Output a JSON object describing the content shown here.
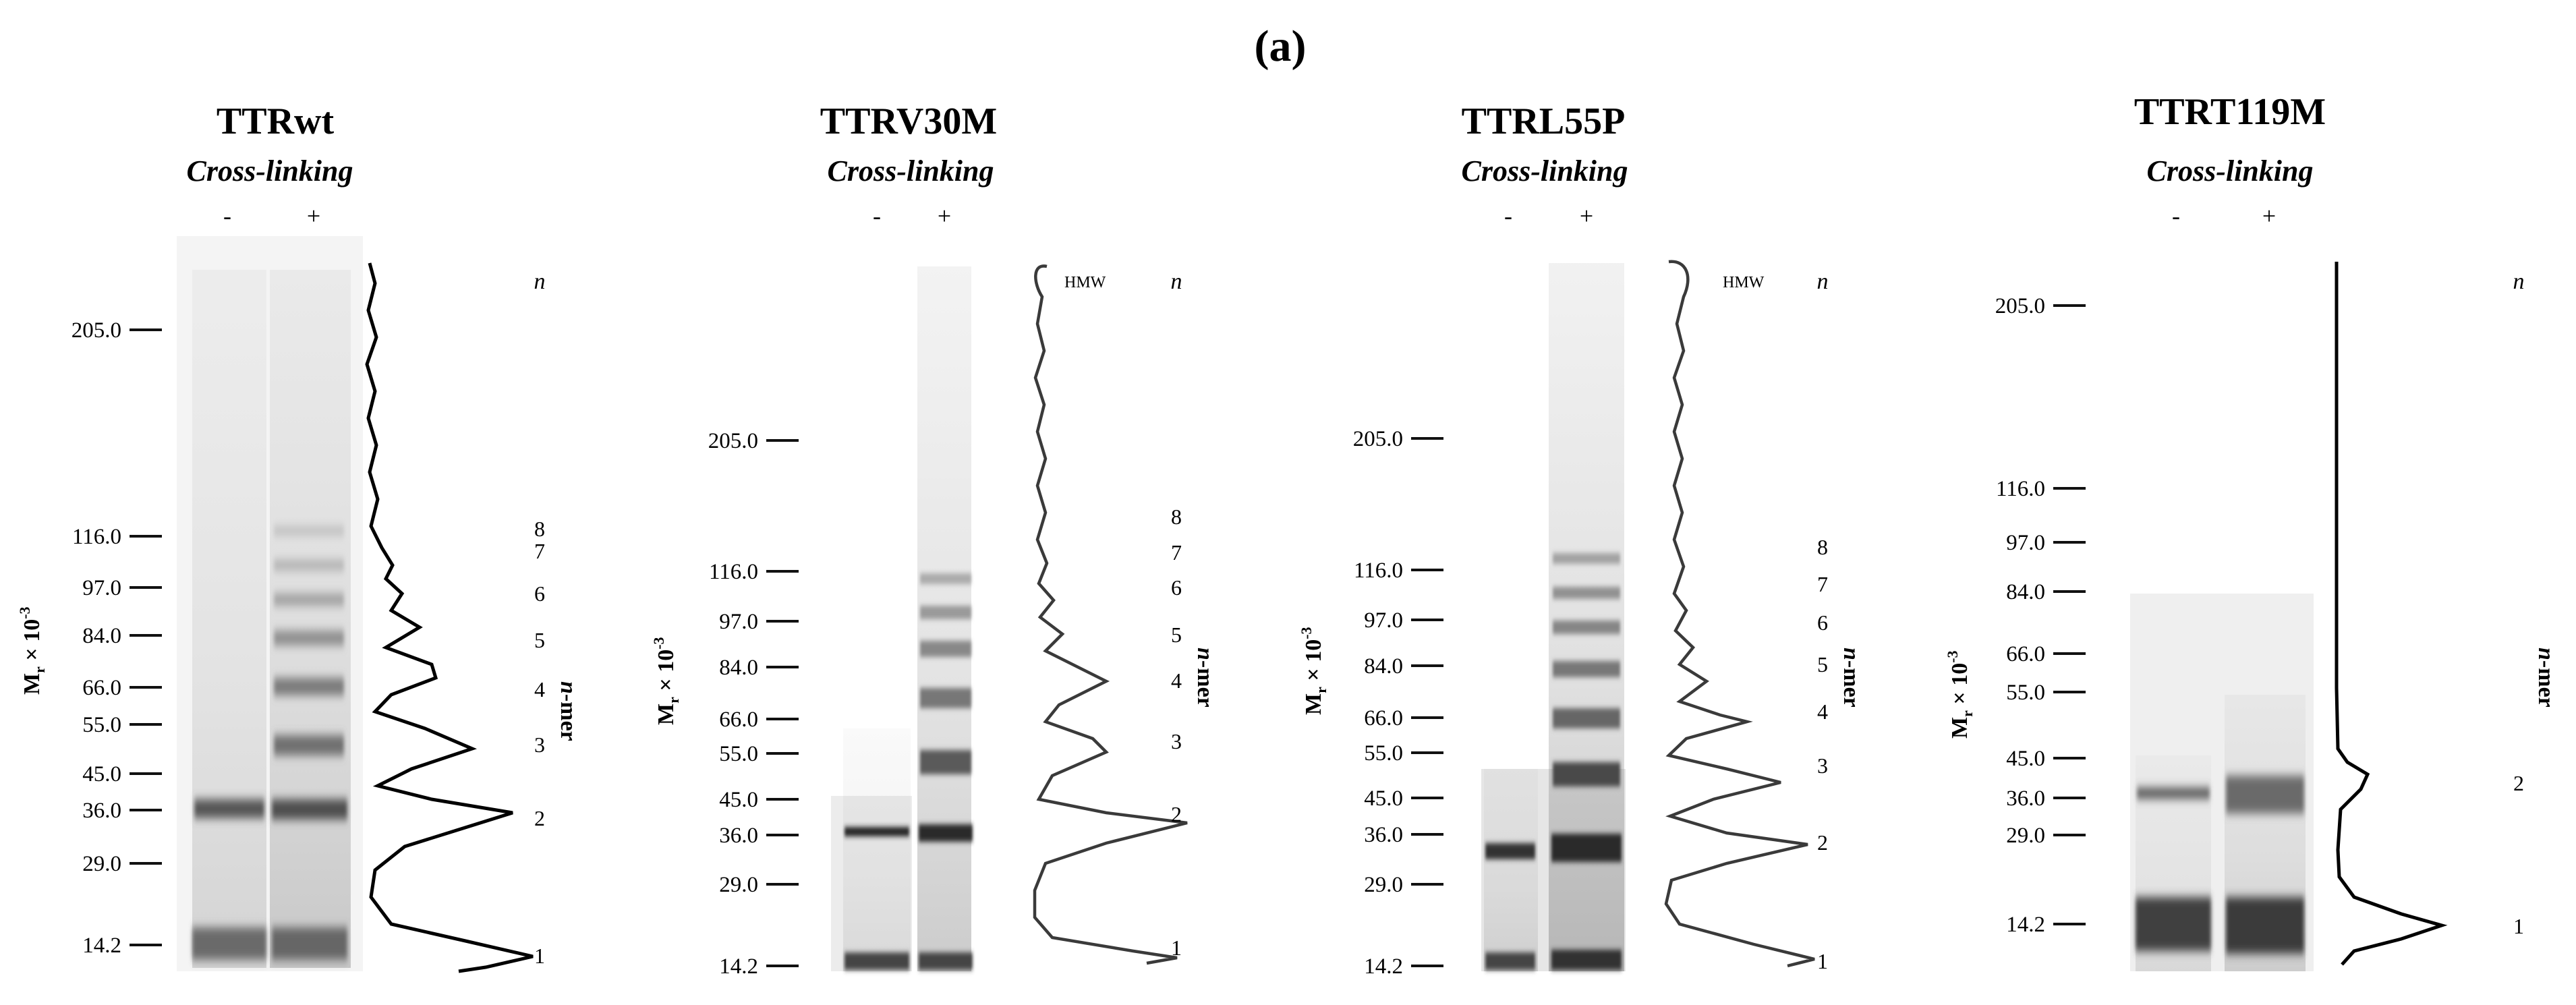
{
  "figure_label": "(a)",
  "axis_label_main": "M",
  "axis_label_sub": "r",
  "axis_label_rest": " × 10",
  "axis_label_exp": "-3",
  "nmer_label": "n-mer",
  "n_label": "n",
  "subtitle": "Cross-linking",
  "lane_minus": "-",
  "lane_plus": "+",
  "panels": [
    {
      "title": "TTRwt",
      "hmw": "",
      "markers": [
        "205.0",
        "116.0",
        "97.0",
        "84.0",
        "66.0",
        "55.0",
        "45.0",
        "36.0",
        "29.0",
        "14.2"
      ],
      "nmers": [
        "8",
        "7",
        "6",
        "5",
        "4",
        "3",
        "2",
        "1"
      ]
    },
    {
      "title": "TTRV30M",
      "hmw": "HMW",
      "markers": [
        "205.0",
        "116.0",
        "97.0",
        "84.0",
        "66.0",
        "55.0",
        "45.0",
        "36.0",
        "29.0",
        "14.2"
      ],
      "nmers": [
        "8",
        "7",
        "6",
        "5",
        "4",
        "3",
        "2",
        "1"
      ]
    },
    {
      "title": "TTRL55P",
      "hmw": "HMW",
      "markers": [
        "205.0",
        "116.0",
        "97.0",
        "84.0",
        "66.0",
        "55.0",
        "45.0",
        "36.0",
        "29.0",
        "14.2"
      ],
      "nmers": [
        "8",
        "7",
        "6",
        "5",
        "4",
        "3",
        "2",
        "1"
      ]
    },
    {
      "title": "TTRT119M",
      "hmw": "",
      "markers": [
        "205.0",
        "116.0",
        "97.0",
        "84.0",
        "66.0",
        "55.0",
        "45.0",
        "36.0",
        "29.0",
        "14.2"
      ],
      "nmers": [
        "2",
        "1"
      ]
    }
  ]
}
